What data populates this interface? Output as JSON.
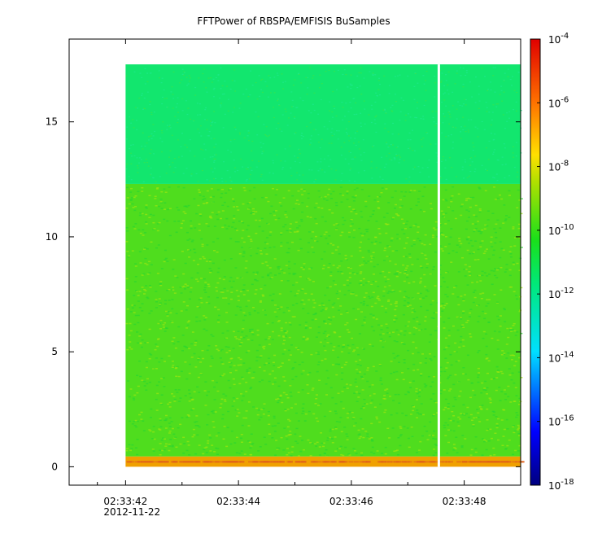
{
  "chart_data": {
    "type": "heatmap",
    "title": "FFTPower of RBSPA/EMFISIS  BuSamples",
    "xlabel": "",
    "ylabel": "",
    "x_ticks": [
      {
        "t": 42,
        "label": "02:33:42"
      },
      {
        "t": 44,
        "label": "02:33:44"
      },
      {
        "t": 46,
        "label": "02:33:46"
      },
      {
        "t": 48,
        "label": "02:33:48"
      }
    ],
    "x_date_label": "2012-11-22",
    "x_minor_ticks": [
      41.5,
      43,
      45,
      47
    ],
    "xlim": [
      41.0,
      49.0
    ],
    "ylim": [
      -0.8,
      18.6
    ],
    "y_ticks": [
      0,
      5,
      10,
      15
    ],
    "colorbar": {
      "scale": "log",
      "range": [
        1e-18,
        0.0001
      ],
      "tick_exponents": [
        -4,
        -6,
        -8,
        -10,
        -12,
        -14,
        -16,
        -18
      ],
      "tick_base": "10"
    },
    "data_extent": {
      "t_start": 42.0,
      "t_end": 49.0,
      "f_min": 0.0,
      "f_max": 17.5
    },
    "gap": {
      "t": 47.55
    },
    "regions": [
      {
        "f_from": 0.0,
        "f_to": 0.45,
        "log10_power": -7.6,
        "color": "#f0a000"
      },
      {
        "f_from": 0.45,
        "f_to": 12.3,
        "log10_power": -10.3,
        "color": "#4fdd1e"
      },
      {
        "f_from": 12.3,
        "f_to": 17.5,
        "log10_power": -11.4,
        "color": "#12e66e"
      }
    ]
  }
}
